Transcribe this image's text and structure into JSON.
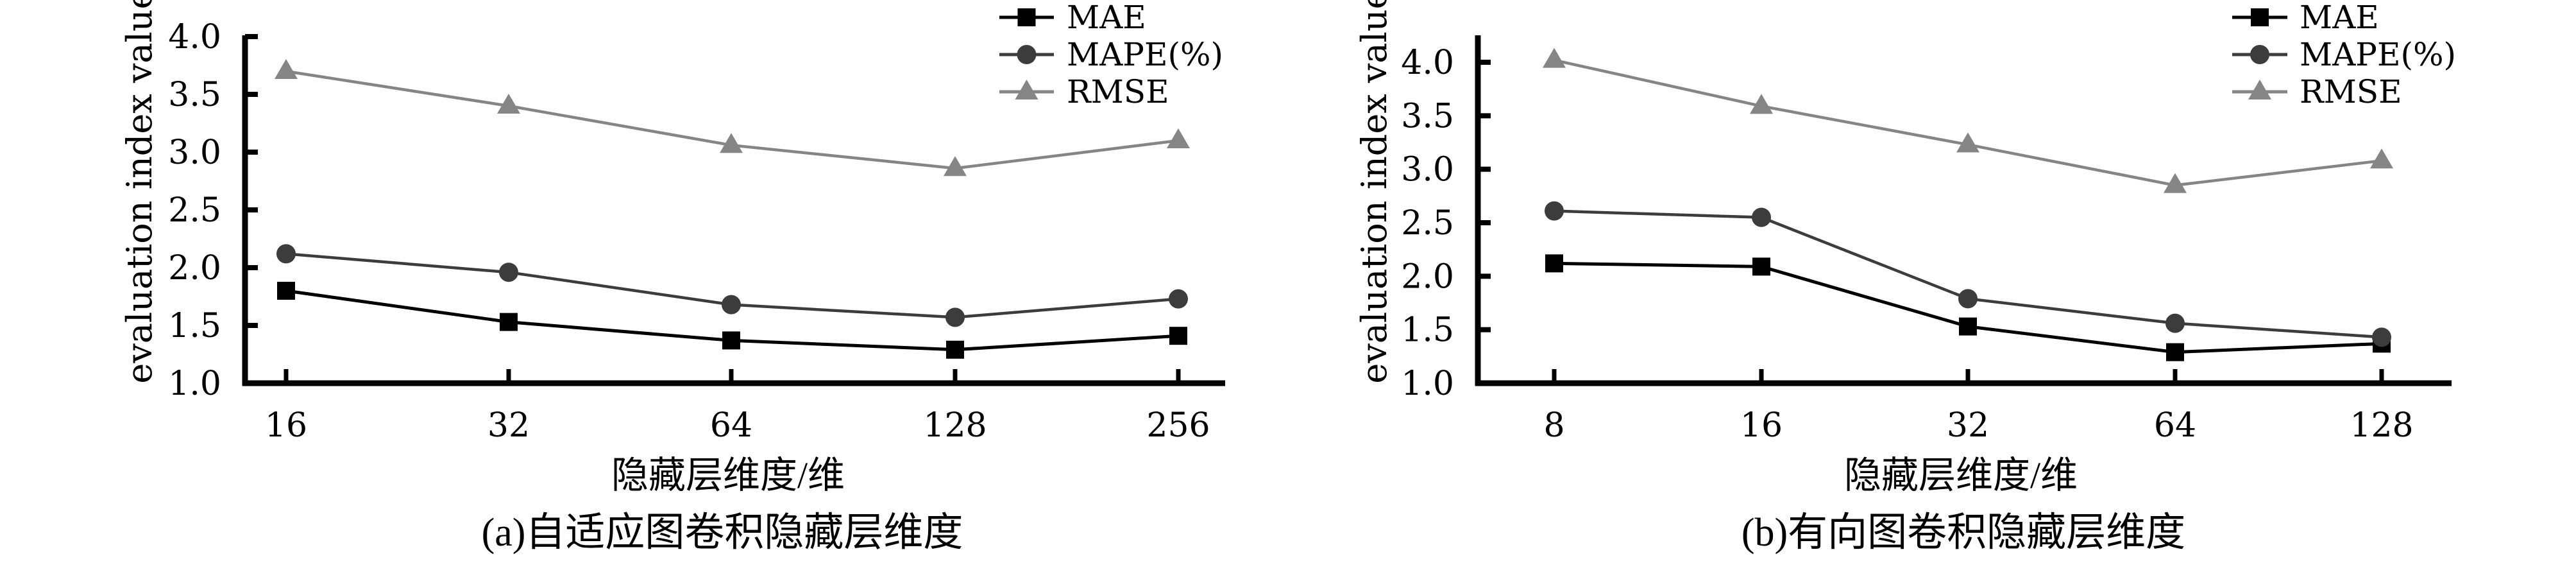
{
  "chart_data": [
    {
      "type": "line",
      "panel_id": "a",
      "caption": "(a)自适应图卷积隐藏层维度",
      "xlabel": "隐藏层维度/维",
      "ylabel": "evaluation index value",
      "categories": [
        "16",
        "32",
        "64",
        "128",
        "256"
      ],
      "ylim": [
        1.0,
        4.0
      ],
      "yticks": [
        "1.0",
        "1.5",
        "2.0",
        "2.5",
        "3.0",
        "3.5",
        "4.0"
      ],
      "grid": false,
      "legend_position": "top-right",
      "series": [
        {
          "name": "MAE",
          "marker": "square",
          "color": "#000000",
          "values": [
            1.8,
            1.53,
            1.37,
            1.29,
            1.41
          ]
        },
        {
          "name": "MAPE(%)",
          "marker": "circle",
          "color": "#3c3c3c",
          "values": [
            2.12,
            1.96,
            1.68,
            1.57,
            1.73
          ]
        },
        {
          "name": "RMSE",
          "marker": "triangle",
          "color": "#858585",
          "values": [
            3.7,
            3.4,
            3.06,
            2.86,
            3.1
          ]
        }
      ]
    },
    {
      "type": "line",
      "panel_id": "b",
      "caption": "(b)有向图卷积隐藏层维度",
      "xlabel": "隐藏层维度/维",
      "ylabel": "evaluation index value",
      "categories": [
        "8",
        "16",
        "32",
        "64",
        "128"
      ],
      "ylim": [
        1.0,
        4.25
      ],
      "yticks": [
        "1.0",
        "1.5",
        "2.0",
        "2.5",
        "3.0",
        "3.5",
        "4.0"
      ],
      "grid": false,
      "legend_position": "top-right",
      "series": [
        {
          "name": "MAE",
          "marker": "square",
          "color": "#000000",
          "values": [
            2.12,
            2.09,
            1.53,
            1.29,
            1.37
          ]
        },
        {
          "name": "MAPE(%)",
          "marker": "circle",
          "color": "#3c3c3c",
          "values": [
            2.61,
            2.55,
            1.79,
            1.56,
            1.43
          ]
        },
        {
          "name": "RMSE",
          "marker": "triangle",
          "color": "#858585",
          "values": [
            4.02,
            3.59,
            3.23,
            2.85,
            3.08
          ]
        }
      ]
    }
  ]
}
